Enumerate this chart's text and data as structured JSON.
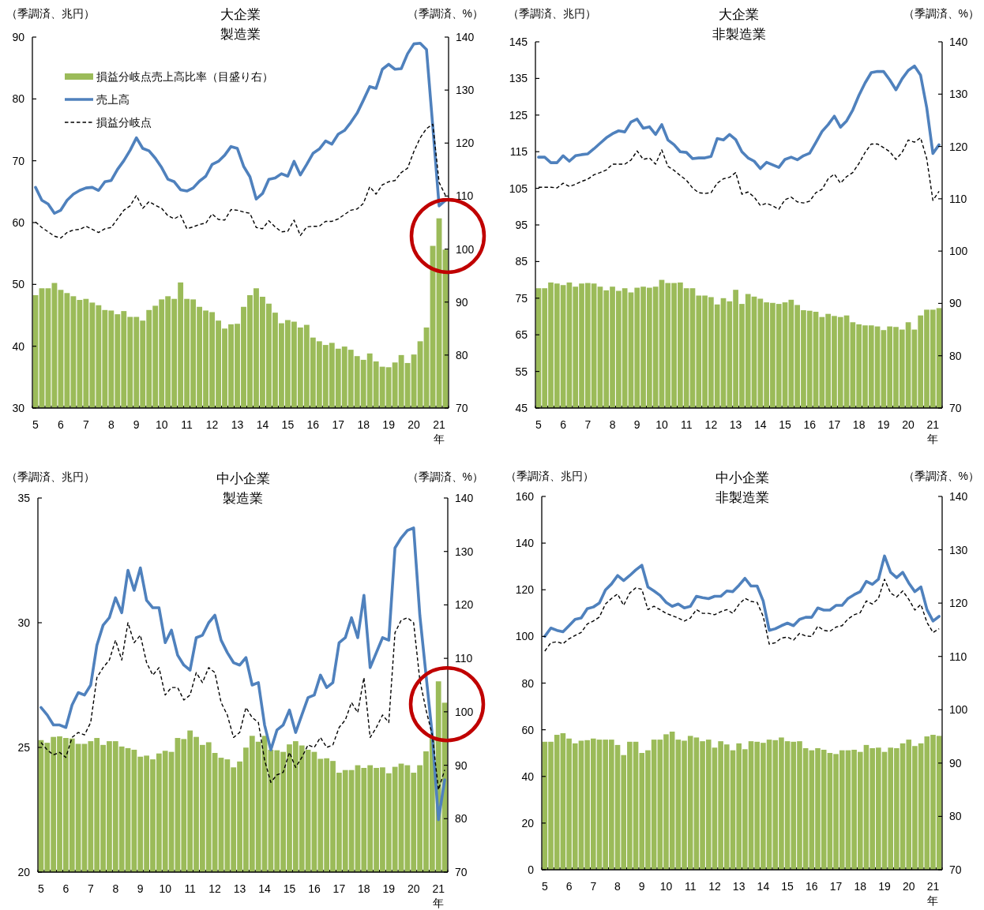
{
  "chart_data": [
    {
      "type": "bar",
      "title": "大企業",
      "subtitle": "製造業",
      "ylabel": "（季調済、兆円）",
      "y2label": "（季調済、%）",
      "xlabel": "年",
      "legend": "top left",
      "categories": [
        "5",
        null,
        null,
        null,
        "6",
        null,
        null,
        null,
        "7",
        null,
        null,
        null,
        "8",
        null,
        null,
        null,
        "9",
        null,
        null,
        null,
        "10",
        null,
        null,
        null,
        "11",
        null,
        null,
        null,
        "12",
        null,
        null,
        null,
        "13",
        null,
        null,
        null,
        "14",
        null,
        null,
        null,
        "15",
        null,
        null,
        null,
        "16",
        null,
        null,
        null,
        "17",
        null,
        null,
        null,
        "18",
        null,
        null,
        null,
        "19",
        null,
        null,
        null,
        "20",
        null,
        null,
        null,
        "21",
        null
      ],
      "ylim": [
        30,
        90
      ],
      "yticks": [
        30,
        40,
        50,
        60,
        70,
        80,
        90
      ],
      "y2lim": [
        70,
        140
      ],
      "y2ticks": [
        70,
        80,
        90,
        100,
        110,
        120,
        130,
        140
      ],
      "series": [
        {
          "name": "損益分岐点売上高比率（目盛り右）",
          "axis": "y2",
          "color": "#9bbb59",
          "values": [
            91.3,
            92.6,
            92.6,
            93.6,
            92.3,
            91.7,
            91.1,
            90.4,
            90.6,
            89.9,
            89.4,
            88.5,
            88.4,
            87.7,
            88.3,
            87.2,
            87.2,
            86.5,
            88.5,
            89.3,
            90.5,
            91.1,
            90.6,
            93.7,
            90.6,
            90.5,
            89.1,
            88.4,
            88.1,
            86.5,
            85.0,
            85.8,
            85.9,
            89.1,
            91.3,
            92.6,
            91.0,
            89.7,
            88.0,
            86.0,
            86.6,
            86.3,
            85.2,
            85.7,
            83.3,
            82.6,
            81.9,
            82.3,
            81.2,
            81.6,
            81.0,
            79.8,
            79.1,
            80.3,
            78.8,
            77.8,
            77.7,
            78.6,
            80.0,
            78.5,
            80.1,
            82.6,
            85.2,
            100.6,
            105.8,
            99.9
          ]
        },
        {
          "name": "売上高",
          "type": "line",
          "axis": "y",
          "color": "#4f81bd",
          "line_style": "solid",
          "values": [
            65.7,
            63.6,
            63.0,
            61.5,
            62.0,
            63.6,
            64.6,
            65.2,
            65.6,
            65.7,
            65.2,
            66.6,
            66.8,
            68.6,
            70.0,
            71.7,
            73.7,
            72.0,
            71.6,
            70.4,
            68.9,
            67.0,
            66.6,
            65.3,
            65.1,
            65.6,
            66.7,
            67.5,
            69.4,
            69.9,
            70.9,
            72.3,
            72.0,
            69.1,
            67.4,
            63.8,
            64.7,
            67.0,
            67.2,
            67.9,
            67.5,
            69.9,
            67.7,
            69.4,
            71.2,
            71.9,
            73.2,
            72.7,
            74.3,
            74.9,
            76.2,
            77.7,
            79.8,
            82.0,
            81.7,
            84.8,
            85.6,
            84.8,
            84.9,
            87.3,
            88.9,
            89.0,
            88.0,
            75.5,
            62.7,
            63.6
          ]
        },
        {
          "name": "損益分岐点",
          "type": "line",
          "axis": "y",
          "color": "#000000",
          "line_style": "dashed",
          "values": [
            60.1,
            59.2,
            58.5,
            57.8,
            57.5,
            58.4,
            58.8,
            58.9,
            59.4,
            58.9,
            58.4,
            59.0,
            59.2,
            60.6,
            62.0,
            62.7,
            64.4,
            62.3,
            63.4,
            62.8,
            62.3,
            61.1,
            60.6,
            61.2,
            59.0,
            59.3,
            59.7,
            59.9,
            61.4,
            60.5,
            60.4,
            62.1,
            62.0,
            61.7,
            61.5,
            59.2,
            59.0,
            60.3,
            59.3,
            58.5,
            58.6,
            60.4,
            57.9,
            59.3,
            59.4,
            59.4,
            60.2,
            60.2,
            60.6,
            61.3,
            62.0,
            62.2,
            63.1,
            65.8,
            64.6,
            66.1,
            66.6,
            66.8,
            68.1,
            68.8,
            71.5,
            73.7,
            75.2,
            75.9,
            66.5,
            64.4
          ]
        }
      ]
    },
    {
      "type": "bar",
      "title": "大企業",
      "subtitle": "非製造業",
      "ylabel": "（季調済、兆円）",
      "y2label": "（季調済、%）",
      "xlabel": "年",
      "categories": [
        "5",
        null,
        null,
        null,
        "6",
        null,
        null,
        null,
        "7",
        null,
        null,
        null,
        "8",
        null,
        null,
        null,
        "9",
        null,
        null,
        null,
        "10",
        null,
        null,
        null,
        "11",
        null,
        null,
        null,
        "12",
        null,
        null,
        null,
        "13",
        null,
        null,
        null,
        "14",
        null,
        null,
        null,
        "15",
        null,
        null,
        null,
        "16",
        null,
        null,
        null,
        "17",
        null,
        null,
        null,
        "18",
        null,
        null,
        null,
        "19",
        null,
        null,
        null,
        "20",
        null,
        null,
        null,
        "21",
        null
      ],
      "ylim": [
        45,
        145
      ],
      "yticks": [
        45,
        55,
        65,
        75,
        85,
        95,
        105,
        115,
        125,
        135,
        145
      ],
      "y2lim": [
        70,
        140
      ],
      "y2ticks": [
        70,
        80,
        90,
        100,
        110,
        120,
        130,
        140
      ],
      "series": [
        {
          "axis": "y2",
          "color": "#9bbb59",
          "values": [
            92.9,
            92.9,
            94.0,
            93.8,
            93.5,
            94.0,
            93.2,
            93.8,
            93.9,
            93.8,
            93.2,
            92.5,
            93.2,
            92.4,
            92.9,
            92.1,
            93.0,
            93.2,
            93.0,
            93.2,
            94.5,
            93.9,
            93.9,
            94.0,
            92.9,
            92.9,
            91.5,
            91.5,
            91.2,
            89.8,
            91.0,
            90.4,
            92.6,
            89.9,
            91.8,
            91.3,
            90.9,
            90.2,
            90.1,
            89.9,
            90.2,
            90.7,
            89.7,
            88.7,
            88.6,
            88.4,
            87.4,
            88.0,
            87.6,
            87.4,
            87.7,
            86.4,
            86.0,
            85.8,
            85.8,
            85.6,
            84.9,
            85.6,
            85.5,
            85.0,
            86.4,
            85.0,
            87.7,
            88.8,
            88.8,
            89.1
          ]
        },
        {
          "type": "line",
          "axis": "y",
          "color": "#4f81bd",
          "line_style": "solid",
          "values": [
            113.5,
            113.5,
            112.0,
            112.0,
            113.9,
            112.4,
            113.9,
            114.2,
            114.4,
            115.8,
            117.3,
            118.8,
            119.9,
            120.7,
            120.4,
            123.1,
            123.9,
            121.4,
            121.8,
            119.7,
            122.4,
            118.2,
            116.9,
            115.0,
            114.8,
            113.1,
            113.3,
            113.3,
            113.7,
            118.6,
            118.2,
            119.7,
            118.3,
            115.0,
            113.3,
            112.4,
            110.4,
            112.1,
            111.4,
            110.7,
            112.9,
            113.5,
            112.8,
            113.9,
            114.6,
            117.5,
            120.5,
            122.4,
            124.7,
            121.7,
            123.4,
            126.4,
            130.4,
            133.8,
            136.6,
            136.9,
            136.9,
            134.6,
            131.9,
            134.9,
            137.2,
            138.4,
            135.9,
            127.0,
            114.5,
            116.9
          ]
        },
        {
          "type": "line",
          "axis": "y",
          "color": "#000000",
          "line_style": "dashed",
          "values": [
            105.3,
            105.3,
            105.3,
            105.1,
            106.4,
            105.5,
            106.1,
            106.9,
            107.5,
            108.7,
            109.3,
            110.0,
            111.6,
            111.6,
            111.6,
            112.7,
            115.2,
            112.9,
            113.3,
            111.6,
            115.5,
            111.0,
            109.9,
            108.5,
            107.2,
            105.1,
            103.8,
            103.6,
            103.8,
            106.4,
            107.6,
            108.0,
            109.3,
            103.4,
            104.0,
            102.6,
            100.3,
            100.9,
            100.2,
            99.3,
            101.9,
            102.6,
            101.3,
            101.0,
            101.5,
            103.8,
            104.7,
            107.6,
            108.9,
            106.4,
            108.2,
            109.3,
            111.8,
            114.8,
            117.1,
            117.1,
            116.1,
            115.0,
            112.9,
            114.8,
            118.2,
            117.6,
            118.8,
            113.1,
            101.7,
            104.2
          ]
        }
      ]
    },
    {
      "type": "bar",
      "title": "中小企業",
      "subtitle": "製造業",
      "ylabel": "（季調済、兆円）",
      "y2label": "（季調済、%）",
      "xlabel": "年",
      "categories": [
        "5",
        null,
        null,
        null,
        "6",
        null,
        null,
        null,
        "7",
        null,
        null,
        null,
        "8",
        null,
        null,
        null,
        "9",
        null,
        null,
        null,
        "10",
        null,
        null,
        null,
        "11",
        null,
        null,
        null,
        "12",
        null,
        null,
        null,
        "13",
        null,
        null,
        null,
        "14",
        null,
        null,
        null,
        "15",
        null,
        null,
        null,
        "16",
        null,
        null,
        null,
        "17",
        null,
        null,
        null,
        "18",
        null,
        null,
        null,
        "19",
        null,
        null,
        null,
        "20",
        null,
        null,
        null,
        "21",
        null
      ],
      "ylim": [
        20,
        35
      ],
      "yticks": [
        20,
        25,
        30,
        35
      ],
      "y2lim": [
        70,
        140
      ],
      "y2ticks": [
        70,
        80,
        90,
        100,
        110,
        120,
        130,
        140
      ],
      "series": [
        {
          "axis": "y2",
          "color": "#9bbb59",
          "values": [
            94.7,
            94.2,
            95.3,
            95.4,
            95.1,
            95.0,
            94.0,
            94.0,
            94.5,
            95.1,
            93.8,
            94.5,
            94.5,
            93.5,
            93.2,
            92.9,
            91.6,
            91.8,
            91.1,
            92.2,
            92.7,
            92.5,
            95.1,
            94.9,
            96.5,
            95.3,
            93.8,
            94.3,
            92.3,
            91.4,
            91.1,
            89.6,
            90.7,
            93.3,
            95.5,
            94.4,
            95.5,
            92.9,
            92.8,
            92.5,
            93.9,
            94.5,
            93.7,
            92.9,
            92.5,
            91.2,
            91.3,
            90.8,
            88.6,
            89.1,
            89.1,
            90.0,
            89.5,
            90.0,
            89.5,
            89.6,
            88.5,
            89.7,
            90.3,
            90.0,
            88.6,
            90.0,
            92.6,
            95.4,
            105.7,
            101.7
          ]
        },
        {
          "type": "line",
          "axis": "y",
          "color": "#4f81bd",
          "line_style": "solid",
          "values": [
            26.6,
            26.3,
            25.9,
            25.9,
            25.8,
            26.7,
            27.2,
            27.1,
            27.5,
            29.1,
            29.9,
            30.2,
            31.0,
            30.4,
            32.1,
            31.3,
            32.2,
            30.9,
            30.6,
            30.6,
            29.2,
            29.7,
            28.7,
            28.3,
            28.1,
            29.4,
            29.5,
            30.0,
            30.3,
            29.3,
            28.8,
            28.4,
            28.3,
            28.6,
            27.5,
            27.6,
            25.9,
            24.9,
            25.7,
            25.9,
            26.5,
            25.6,
            26.3,
            27.0,
            27.1,
            27.9,
            27.4,
            27.6,
            29.2,
            29.4,
            30.2,
            29.4,
            31.1,
            28.2,
            28.8,
            29.4,
            29.3,
            33.0,
            33.4,
            33.7,
            33.8,
            30.3,
            27.9,
            25.5,
            22.1,
            23.7
          ]
        },
        {
          "type": "line",
          "axis": "y",
          "color": "#000000",
          "line_style": "dashed",
          "values": [
            25.2,
            24.9,
            24.7,
            24.8,
            24.6,
            25.4,
            25.6,
            25.5,
            26.0,
            27.8,
            28.2,
            28.5,
            29.3,
            28.5,
            30.0,
            29.2,
            29.5,
            28.4,
            27.9,
            28.2,
            27.1,
            27.4,
            27.4,
            26.9,
            27.1,
            28.0,
            27.6,
            28.2,
            28.0,
            26.8,
            26.3,
            25.4,
            25.6,
            26.6,
            26.2,
            26.0,
            24.5,
            23.6,
            23.9,
            24.0,
            24.8,
            24.2,
            24.6,
            25.1,
            25.0,
            25.4,
            25.0,
            25.1,
            25.8,
            26.1,
            26.8,
            26.4,
            27.8,
            25.4,
            25.8,
            26.3,
            26.0,
            29.6,
            30.1,
            30.2,
            30.0,
            27.7,
            26.5,
            25.5,
            23.3,
            24.1
          ]
        }
      ]
    },
    {
      "type": "bar",
      "title": "中小企業",
      "subtitle": "非製造業",
      "ylabel": "（季調済、兆円）",
      "y2label": "（季調済、%）",
      "xlabel": "年",
      "categories": [
        "5",
        null,
        null,
        null,
        "6",
        null,
        null,
        null,
        "7",
        null,
        null,
        null,
        "8",
        null,
        null,
        null,
        "9",
        null,
        null,
        null,
        "10",
        null,
        null,
        null,
        "11",
        null,
        null,
        null,
        "12",
        null,
        null,
        null,
        "13",
        null,
        null,
        null,
        "14",
        null,
        null,
        null,
        "15",
        null,
        null,
        null,
        "16",
        null,
        null,
        null,
        "17",
        null,
        null,
        null,
        "18",
        null,
        null,
        null,
        "19",
        null,
        null,
        null,
        "20",
        null,
        null,
        null,
        "21",
        null
      ],
      "ylim": [
        0,
        160
      ],
      "yticks": [
        0,
        20,
        40,
        60,
        80,
        100,
        120,
        140,
        160
      ],
      "y2lim": [
        70,
        140
      ],
      "y2ticks": [
        70,
        80,
        90,
        100,
        110,
        120,
        130,
        140
      ],
      "series": [
        {
          "axis": "y2",
          "color": "#9bbb59",
          "values": [
            94.0,
            94.0,
            95.3,
            95.6,
            94.6,
            93.7,
            94.2,
            94.3,
            94.6,
            94.4,
            94.4,
            94.4,
            93.4,
            91.5,
            94.0,
            94.0,
            91.9,
            92.4,
            94.4,
            94.4,
            95.4,
            95.9,
            94.4,
            94.2,
            95.1,
            94.8,
            94.1,
            94.4,
            92.9,
            94.1,
            93.5,
            92.4,
            93.7,
            92.6,
            94.1,
            94.0,
            93.8,
            94.4,
            94.3,
            94.8,
            94.1,
            94.0,
            94.1,
            92.8,
            92.4,
            92.8,
            92.5,
            91.9,
            91.7,
            92.4,
            92.4,
            92.5,
            92.1,
            93.4,
            92.8,
            92.9,
            92.1,
            92.9,
            92.8,
            93.7,
            94.4,
            93.2,
            93.7,
            95.0,
            95.3,
            95.1
          ]
        },
        {
          "type": "line",
          "axis": "y",
          "color": "#4f81bd",
          "line_style": "solid",
          "values": [
            100.0,
            103.6,
            102.6,
            102.0,
            104.6,
            107.3,
            107.9,
            111.9,
            112.6,
            114.3,
            119.9,
            122.5,
            126.1,
            123.9,
            126.1,
            128.5,
            130.5,
            121.2,
            119.5,
            117.6,
            114.6,
            112.9,
            113.9,
            112.2,
            112.9,
            117.2,
            116.6,
            116.2,
            117.2,
            117.2,
            119.5,
            119.2,
            121.9,
            124.9,
            121.6,
            121.6,
            115.2,
            102.6,
            103.3,
            104.6,
            105.7,
            104.6,
            107.3,
            108.2,
            108.2,
            112.2,
            111.3,
            111.3,
            113.3,
            113.3,
            116.3,
            117.9,
            119.2,
            123.6,
            122.3,
            124.5,
            134.5,
            127.5,
            125.2,
            127.5,
            122.9,
            119.2,
            121.2,
            111.5,
            106.6,
            108.6
          ]
        },
        {
          "type": "line",
          "axis": "y",
          "color": "#000000",
          "line_style": "dashed",
          "values": [
            93.7,
            97.3,
            97.7,
            96.9,
            99.0,
            100.4,
            101.7,
            105.3,
            106.6,
            108.3,
            113.9,
            116.3,
            118.2,
            113.3,
            118.6,
            120.8,
            120.2,
            111.5,
            112.9,
            111.5,
            109.9,
            108.9,
            107.9,
            106.6,
            107.9,
            111.5,
            109.9,
            109.9,
            109.3,
            110.6,
            111.5,
            109.9,
            113.7,
            116.3,
            115.0,
            114.6,
            108.6,
            96.7,
            97.3,
            99.3,
            99.7,
            98.4,
            101.3,
            100.2,
            100.0,
            104.4,
            102.6,
            102.2,
            104.0,
            104.6,
            107.5,
            109.3,
            110.2,
            115.2,
            113.9,
            116.3,
            124.5,
            118.6,
            116.9,
            119.5,
            115.9,
            111.3,
            113.7,
            106.0,
            101.7,
            103.3
          ]
        }
      ]
    }
  ]
}
